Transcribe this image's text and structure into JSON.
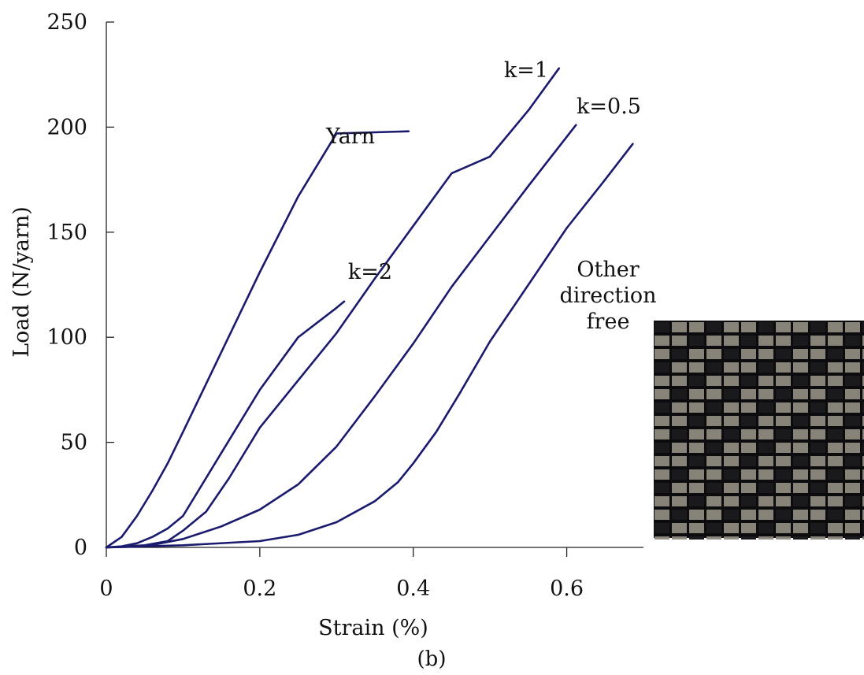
{
  "chart_data": {
    "type": "line",
    "xlabel": "Strain (%)",
    "ylabel": "Load (N/yarn)",
    "caption": "(b)",
    "xlim": [
      0,
      0.7
    ],
    "ylim": [
      0,
      250
    ],
    "xticks": [
      0,
      0.2,
      0.4,
      0.6
    ],
    "xtick_labels": [
      "0",
      "0.2",
      "0.4",
      "0.6"
    ],
    "yticks": [
      0,
      50,
      100,
      150,
      200,
      250
    ],
    "ytick_labels": [
      "0",
      "50",
      "100",
      "150",
      "200",
      "250"
    ],
    "grid": false,
    "legend": "none",
    "series_color": "#1a1a6e",
    "series": [
      {
        "name": "Yarn",
        "label_lines": [
          "Yarn"
        ],
        "points": [
          [
            0,
            0
          ],
          [
            0.02,
            5
          ],
          [
            0.04,
            15
          ],
          [
            0.06,
            27
          ],
          [
            0.08,
            40
          ],
          [
            0.1,
            55
          ],
          [
            0.15,
            93
          ],
          [
            0.2,
            131
          ],
          [
            0.25,
            167
          ],
          [
            0.3,
            197
          ],
          [
            0.394,
            198
          ]
        ]
      },
      {
        "name": "k=2",
        "label_lines": [
          "k=2"
        ],
        "points": [
          [
            0,
            0
          ],
          [
            0.02,
            0.5
          ],
          [
            0.04,
            2
          ],
          [
            0.06,
            5
          ],
          [
            0.08,
            9
          ],
          [
            0.1,
            15
          ],
          [
            0.15,
            45
          ],
          [
            0.2,
            75
          ],
          [
            0.25,
            100
          ],
          [
            0.3,
            114
          ],
          [
            0.31,
            117
          ]
        ]
      },
      {
        "name": "k=1",
        "label_lines": [
          "k=1"
        ],
        "points": [
          [
            0,
            0
          ],
          [
            0.05,
            1
          ],
          [
            0.08,
            3
          ],
          [
            0.1,
            8
          ],
          [
            0.13,
            17
          ],
          [
            0.16,
            33
          ],
          [
            0.2,
            57
          ],
          [
            0.3,
            102
          ],
          [
            0.35,
            128
          ],
          [
            0.4,
            153
          ],
          [
            0.45,
            178
          ],
          [
            0.5,
            186
          ],
          [
            0.55,
            208
          ],
          [
            0.59,
            228
          ]
        ]
      },
      {
        "name": "k=0.5",
        "label_lines": [
          "k=0.5"
        ],
        "points": [
          [
            0,
            0
          ],
          [
            0.05,
            0.5
          ],
          [
            0.1,
            4
          ],
          [
            0.15,
            10
          ],
          [
            0.2,
            18
          ],
          [
            0.25,
            30
          ],
          [
            0.3,
            48
          ],
          [
            0.35,
            72
          ],
          [
            0.4,
            97
          ],
          [
            0.45,
            124
          ],
          [
            0.5,
            148
          ],
          [
            0.55,
            172
          ],
          [
            0.612,
            201
          ]
        ]
      },
      {
        "name": "Other direction free",
        "label_lines": [
          "Other",
          "direction",
          "free"
        ],
        "points": [
          [
            0,
            0
          ],
          [
            0.1,
            1
          ],
          [
            0.2,
            3
          ],
          [
            0.25,
            6
          ],
          [
            0.3,
            12
          ],
          [
            0.35,
            22
          ],
          [
            0.38,
            31
          ],
          [
            0.4,
            40
          ],
          [
            0.43,
            55
          ],
          [
            0.46,
            73
          ],
          [
            0.5,
            98
          ],
          [
            0.55,
            125
          ],
          [
            0.6,
            152
          ],
          [
            0.65,
            175
          ],
          [
            0.686,
            192
          ]
        ]
      }
    ]
  },
  "inset_image": {
    "description_icon": "woven-fabric-photo",
    "colors": {
      "yarn_light": "#8f8a7e",
      "yarn_dark": "#1a1a1c",
      "gap": "#0c0c0e"
    }
  }
}
